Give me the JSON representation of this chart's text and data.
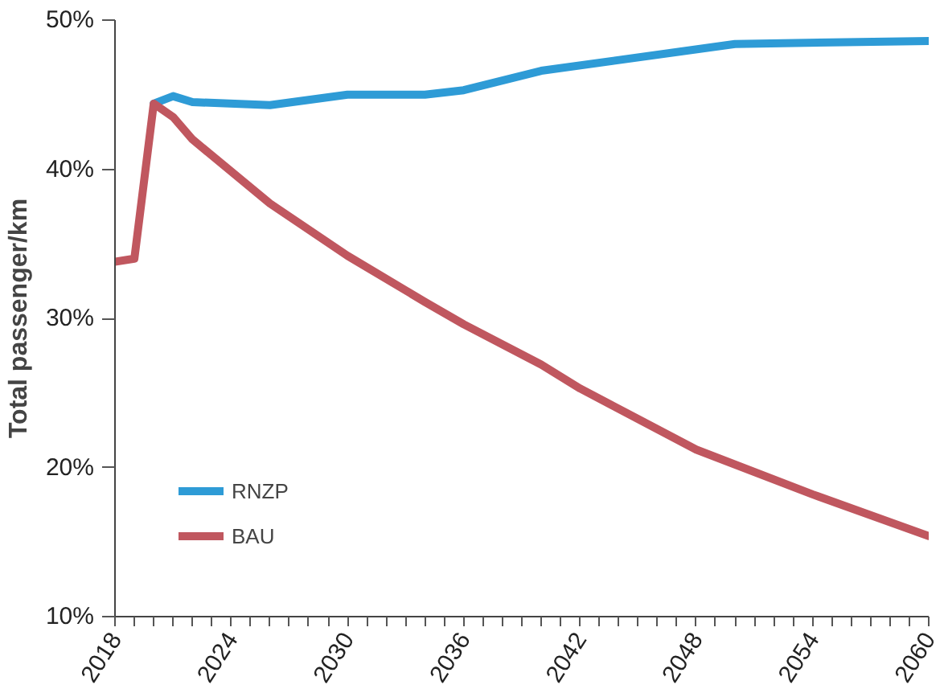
{
  "chart_data": {
    "type": "line",
    "ylabel": "Total passenger/km",
    "xlim": [
      2018,
      2060
    ],
    "ylim": [
      10,
      50
    ],
    "yticks": [
      {
        "value": 10,
        "label": "10%"
      },
      {
        "value": 20,
        "label": "20%"
      },
      {
        "value": 30,
        "label": "30%"
      },
      {
        "value": 40,
        "label": "40%"
      },
      {
        "value": 50,
        "label": "50%"
      }
    ],
    "xticks": [
      2018,
      {
        "value": 2019,
        "label": null
      },
      {
        "value": 2020,
        "label": null
      },
      {
        "value": 2021,
        "label": null
      },
      {
        "value": 2022,
        "label": null
      },
      {
        "value": 2023,
        "label": null
      },
      2024,
      {
        "value": 2025,
        "label": null
      },
      {
        "value": 2026,
        "label": null
      },
      {
        "value": 2027,
        "label": null
      },
      {
        "value": 2028,
        "label": null
      },
      {
        "value": 2029,
        "label": null
      },
      2030,
      {
        "value": 2031,
        "label": null
      },
      {
        "value": 2032,
        "label": null
      },
      {
        "value": 2033,
        "label": null
      },
      {
        "value": 2034,
        "label": null
      },
      {
        "value": 2035,
        "label": null
      },
      2036,
      {
        "value": 2037,
        "label": null
      },
      {
        "value": 2038,
        "label": null
      },
      {
        "value": 2039,
        "label": null
      },
      {
        "value": 2040,
        "label": null
      },
      {
        "value": 2041,
        "label": null
      },
      2042,
      {
        "value": 2043,
        "label": null
      },
      {
        "value": 2044,
        "label": null
      },
      {
        "value": 2045,
        "label": null
      },
      {
        "value": 2046,
        "label": null
      },
      {
        "value": 2047,
        "label": null
      },
      2048,
      {
        "value": 2049,
        "label": null
      },
      {
        "value": 2050,
        "label": null
      },
      {
        "value": 2051,
        "label": null
      },
      {
        "value": 2052,
        "label": null
      },
      {
        "value": 2053,
        "label": null
      },
      2054,
      {
        "value": 2055,
        "label": null
      },
      {
        "value": 2056,
        "label": null
      },
      {
        "value": 2057,
        "label": null
      },
      {
        "value": 2058,
        "label": null
      },
      {
        "value": 2059,
        "label": null
      },
      2060
    ],
    "grid": false,
    "legend": "bottom left",
    "line_style": "solid",
    "series": [
      {
        "name": "RNZP",
        "color": "#2e9bd6",
        "x": [
          2020,
          2021,
          2022,
          2026,
          2030,
          2034,
          2036,
          2040,
          2050,
          2060
        ],
        "values": [
          44.4,
          44.9,
          44.5,
          44.3,
          45.0,
          45.0,
          45.3,
          46.6,
          48.4,
          48.6
        ]
      },
      {
        "name": "BAU",
        "color": "#c0575f",
        "x": [
          2018,
          2019,
          2020,
          2021,
          2022,
          2026,
          2030,
          2034,
          2036,
          2040,
          2042,
          2048,
          2054,
          2060
        ],
        "values": [
          33.8,
          34.0,
          44.4,
          43.5,
          42.0,
          37.7,
          34.2,
          31.1,
          29.6,
          26.9,
          25.3,
          21.2,
          18.2,
          15.4
        ]
      }
    ]
  }
}
